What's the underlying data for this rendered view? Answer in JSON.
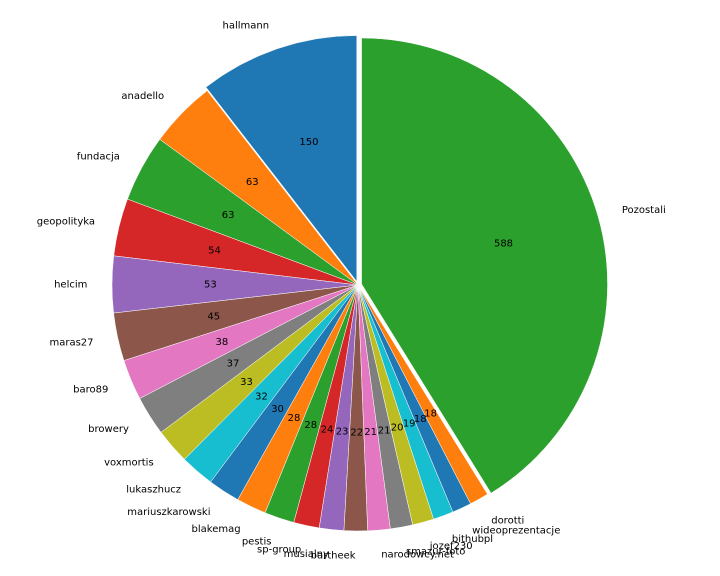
{
  "chart_data": {
    "type": "pie",
    "title": "",
    "start_angle_deg": 90,
    "counterclock": true,
    "explode": {
      "hallmann": 0.015,
      "Pozostali": 0.015
    },
    "slices": [
      {
        "label": "hallmann",
        "value": 150,
        "color": "#1f77b4"
      },
      {
        "label": "anadello",
        "value": 63,
        "color": "#ff7f0e"
      },
      {
        "label": "fundacja",
        "value": 63,
        "color": "#2ca02c"
      },
      {
        "label": "geopolityka",
        "value": 54,
        "color": "#d62728"
      },
      {
        "label": "helcim",
        "value": 53,
        "color": "#9467bd"
      },
      {
        "label": "maras27",
        "value": 45,
        "color": "#8c564b"
      },
      {
        "label": "baro89",
        "value": 38,
        "color": "#e377c2"
      },
      {
        "label": "browery",
        "value": 37,
        "color": "#7f7f7f"
      },
      {
        "label": "voxmortis",
        "value": 33,
        "color": "#bcbd22"
      },
      {
        "label": "lukaszhucz",
        "value": 32,
        "color": "#17becf"
      },
      {
        "label": "mariuszkarowski",
        "value": 30,
        "color": "#1f77b4"
      },
      {
        "label": "blakemag",
        "value": 28,
        "color": "#ff7f0e"
      },
      {
        "label": "pestis",
        "value": 28,
        "color": "#2ca02c"
      },
      {
        "label": "sp-group",
        "value": 24,
        "color": "#d62728"
      },
      {
        "label": "musialny",
        "value": 23,
        "color": "#9467bd"
      },
      {
        "label": "bartheek",
        "value": 22,
        "color": "#8c564b"
      },
      {
        "label": "narodowcy.net",
        "value": 21,
        "color": "#e377c2"
      },
      {
        "label": "smazur-foto",
        "value": 21,
        "color": "#7f7f7f"
      },
      {
        "label": "jozef230",
        "value": 20,
        "color": "#bcbd22"
      },
      {
        "label": "bithubpl",
        "value": 19,
        "color": "#17becf"
      },
      {
        "label": "wideoprezentacje",
        "value": 18,
        "color": "#1f77b4"
      },
      {
        "label": "dorotti",
        "value": 18,
        "color": "#ff7f0e"
      },
      {
        "label": "Pozostali",
        "value": 588,
        "color": "#2ca02c"
      }
    ]
  }
}
